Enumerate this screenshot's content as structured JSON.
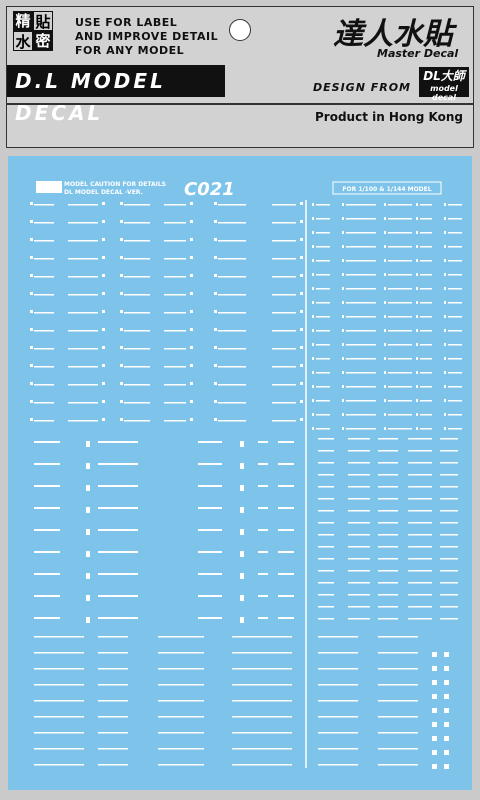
{
  "header": {
    "logo_chars": [
      "精",
      "貼",
      "水",
      "密"
    ],
    "lines": [
      "USE FOR LABEL",
      "AND IMPROVE DETAIL",
      "FOR ANY MODEL"
    ],
    "brand_bar": "D.L MODEL DECAL",
    "brand_cn": "達人水貼",
    "brand_en": "Master Decal",
    "design_from": "DESIGN FROM",
    "design_logo": "DL大師",
    "design_logo_sub": "model decal",
    "origin": "Product in Hong Kong"
  },
  "sheet": {
    "caution": "MODEL CAUTION FOR DETAILS",
    "version": "DL MODEL DECAL -VER.",
    "code": "C021",
    "scale": "FOR 1/100 & 1/144 MODEL"
  }
}
